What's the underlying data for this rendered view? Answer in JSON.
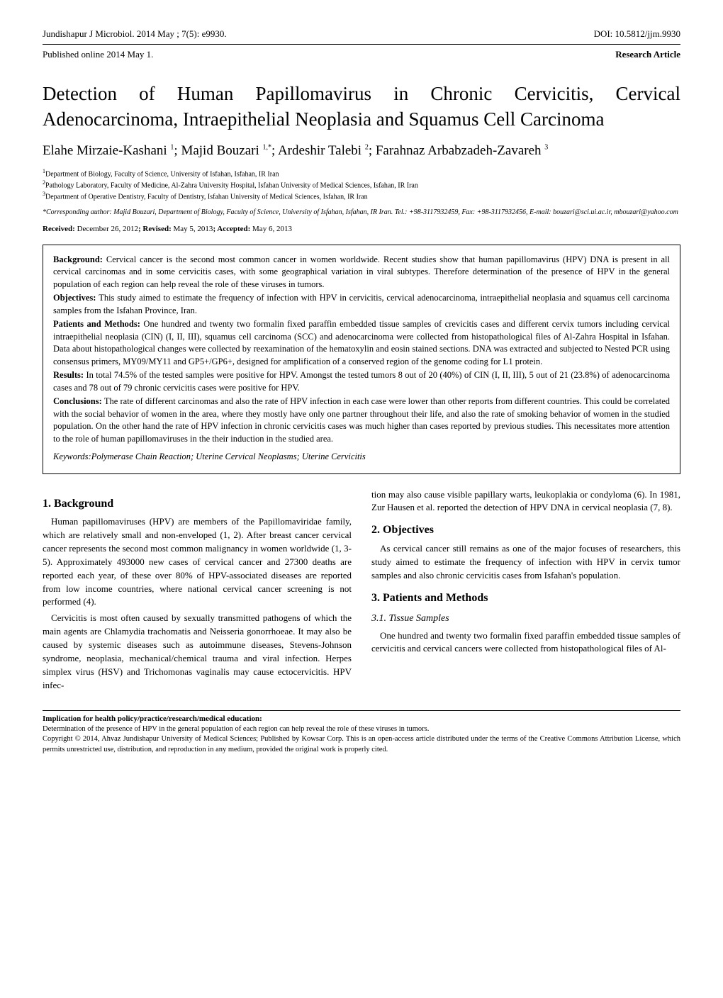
{
  "header": {
    "journal_citation": "Jundishapur J Microbiol. 2014 May ; 7(5): e9930.",
    "doi": "DOI: 10.5812/jjm.9930",
    "published": "Published online 2014 May 1.",
    "article_type": "Research Article"
  },
  "title": "Detection of Human Papillomavirus in Chronic Cervicitis, Cervical Adenocarcinoma, Intraepithelial Neoplasia and Squamus Cell Carcinoma",
  "authors_html": "Elahe Mirzaie-Kashani <sup>1</sup>; Majid Bouzari <sup>1,*</sup>; Ardeshir Talebi <sup>2</sup>; Farahnaz Arbabzadeh-Zavareh <sup>3</sup>",
  "affiliations": [
    "Department of Biology, Faculty of Science, University of Isfahan, Isfahan, IR Iran",
    "Pathology Laboratory, Faculty of Medicine, Al-Zahra University Hospital, Isfahan University of Medical Sciences, Isfahan, IR Iran",
    "Department of Operative Dentistry, Faculty of Dentistry, Isfahan University of Medical Sciences, Isfahan, IR Iran"
  ],
  "corresponding": "*Corresponding author: Majid Bouzari, Department of Biology, Faculty of Science, University of Isfahan, Isfahan, IR Iran. Tel.: +98-3117932459, Fax: +98-3117932456, E-mail: bouzari@sci.ui.ac.ir, mbouzari@yahoo.com",
  "dates_html": "<b>Received:</b> December 26, 2012<b>; Revised:</b> May 5, 2013<b>; Accepted:</b> May 6, 2013",
  "abstract": {
    "background": "Cervical cancer is the second most common cancer in women worldwide. Recent studies show that human papillomavirus (HPV) DNA is present in all cervical carcinomas and in some cervicitis cases, with some geographical variation in viral subtypes. Therefore determination of the presence of HPV in the general population of each region can help reveal the role of these viruses in tumors.",
    "objectives": "This study aimed to estimate the frequency of infection with HPV in cervicitis, cervical adenocarcinoma, intraepithelial neoplasia and squamus cell carcinoma samples from the Isfahan Province, Iran.",
    "patients_methods": "One hundred and twenty two formalin fixed paraffin embedded tissue samples of crevicitis cases and different cervix tumors including cervical intraepithelial neoplasia (CIN) (I, II, III), squamus cell carcinoma (SCC) and adenocarcinoma were collected from histopathological files of Al-Zahra Hospital in Isfahan. Data about histopathological changes were collected by reexamination of the hematoxylin and eosin stained sections. DNA was extracted and subjected to Nested PCR using consensus primers, MY09/MY11 and GP5+/GP6+, designed for amplification of a conserved region of the genome coding for L1 protein.",
    "results": "In total 74.5% of the tested samples were positive for HPV. Amongst the tested tumors 8 out of 20 (40%) of CIN (I, II, III), 5 out of 21 (23.8%) of adenocarcinoma cases and 78 out of 79 chronic cervicitis cases were positive for HPV.",
    "conclusions": "The rate of different carcinomas and also the rate of HPV infection in each case were lower than other reports from different countries. This could be correlated with the social behavior of women in the area, where they mostly have only one partner throughout their life, and also the rate of smoking behavior of women in the studied population. On the other hand the rate of HPV infection in chronic cervicitis cases was much higher than cases reported by previous studies. This necessitates more attention to the role of human papillomaviruses in the their induction in the studied area.",
    "keywords": "Keywords:Polymerase Chain Reaction; Uterine Cervical Neoplasms; Uterine Cervicitis"
  },
  "sections": {
    "background_title": "1. Background",
    "background_p1": "Human papillomaviruses (HPV) are members of the Papillomaviridae family, which are relatively small and non-enveloped (1, 2). After breast cancer cervical cancer represents the second most common malignancy in women worldwide (1, 3-5). Approximately 493000 new cases of cervical cancer and 27300 deaths are reported each year, of these over 80% of HPV-associated diseases are reported from low income countries, where national cervical cancer screening is not performed (4).",
    "background_p2": "Cervicitis is most often caused by sexually transmitted pathogens of which the main agents are Chlamydia trachomatis and Neisseria gonorrhoeae. It may also be caused by systemic diseases such as autoimmune diseases, Stevens-Johnson syndrome, neoplasia, mechanical/chemical trauma and viral infection. Herpes simplex virus (HSV) and Trichomonas vaginalis may cause ectocervicitis. HPV infec-",
    "background_p3": "tion may also cause visible papillary warts, leukoplakia or condyloma (6). In 1981, Zur Hausen et al. reported the detection of HPV DNA in cervical neoplasia (7, 8).",
    "objectives_title": "2. Objectives",
    "objectives_p1": "As cervical cancer still remains as one of the major focuses of researchers, this study aimed to estimate the frequency of infection with HPV in cervix tumor samples and also chronic cervicitis cases from Isfahan's population.",
    "methods_title": "3. Patients and Methods",
    "tissue_title": "3.1. Tissue Samples",
    "tissue_p1": "One hundred and twenty two formalin fixed paraffin embedded tissue samples of cervicitis and cervical cancers were collected from histopathological files of Al-"
  },
  "footer": {
    "implication_title": "Implication for health policy/practice/research/medical education:",
    "implication_text": "Determination of the presence of HPV in the general population of each region can help reveal the role of these viruses in tumors.",
    "copyright": "Copyright © 2014, Ahvaz Jundishapur University of Medical Sciences; Published by Kowsar Corp. This is an open-access article distributed under the terms of the Creative Commons Attribution License, which permits unrestricted use, distribution, and reproduction in any medium, provided the original work is properly cited."
  }
}
